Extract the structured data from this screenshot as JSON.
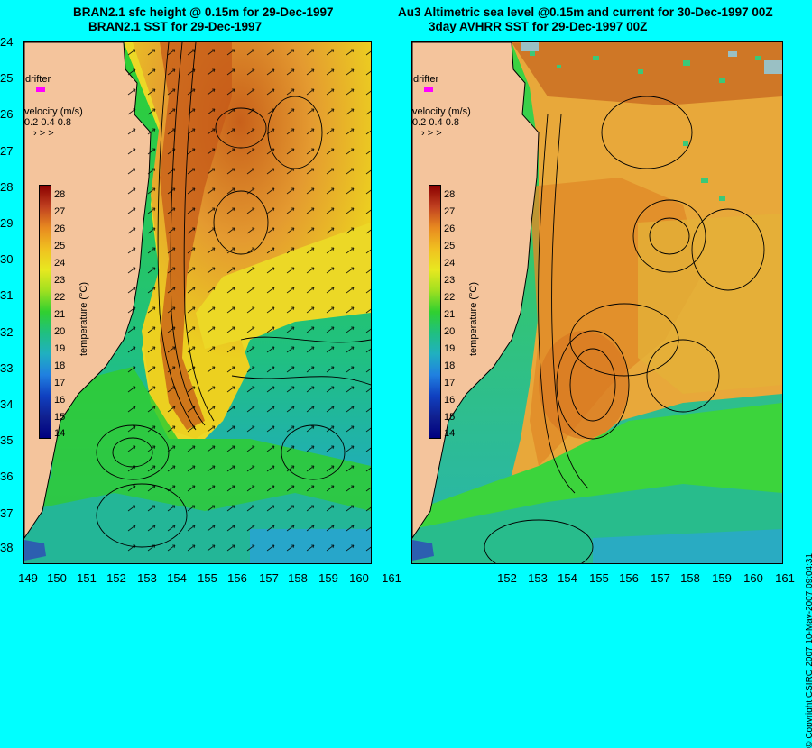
{
  "left_title": {
    "line1": "BRAN2.1 sfc height @ 0.15m for 29-Dec-1997",
    "line2": "BRAN2.1 SST for 29-Dec-1997"
  },
  "right_title": {
    "line1": "Au3 Altimetric sea level  @0.15m and current for 30-Dec-1997 00Z",
    "line2": "3day AVHRR SST for 29-Dec-1997 00Z"
  },
  "lat_labels": [
    "24",
    "25",
    "26",
    "27",
    "28",
    "29",
    "30",
    "31",
    "32",
    "33",
    "34",
    "35",
    "36",
    "37",
    "38"
  ],
  "lon_labels_left": [
    "149",
    "150",
    "151",
    "152",
    "153",
    "154",
    "155",
    "156",
    "157",
    "158",
    "159",
    "160",
    "161"
  ],
  "lon_labels_right": [
    "152",
    "153",
    "154",
    "155",
    "156",
    "157",
    "158",
    "159",
    "160",
    "161"
  ],
  "drifter_label": "drifter",
  "velocity": {
    "label": "velocity (m/s)",
    "scale": "0.2 0.4 0.8",
    "arrows": "› > >"
  },
  "colorbar": {
    "ticks": [
      "28",
      "27",
      "26",
      "25",
      "24",
      "23",
      "22",
      "21",
      "20",
      "19",
      "18",
      "17",
      "16",
      "15",
      "14"
    ],
    "label": "temperature (°C)"
  },
  "copyright": "© Copyright CSIRO 2007    10-May-2007 09:04:31",
  "colors": {
    "background": "#00ffff",
    "land": "#f4c49c",
    "drifter": "#ff00ff"
  }
}
